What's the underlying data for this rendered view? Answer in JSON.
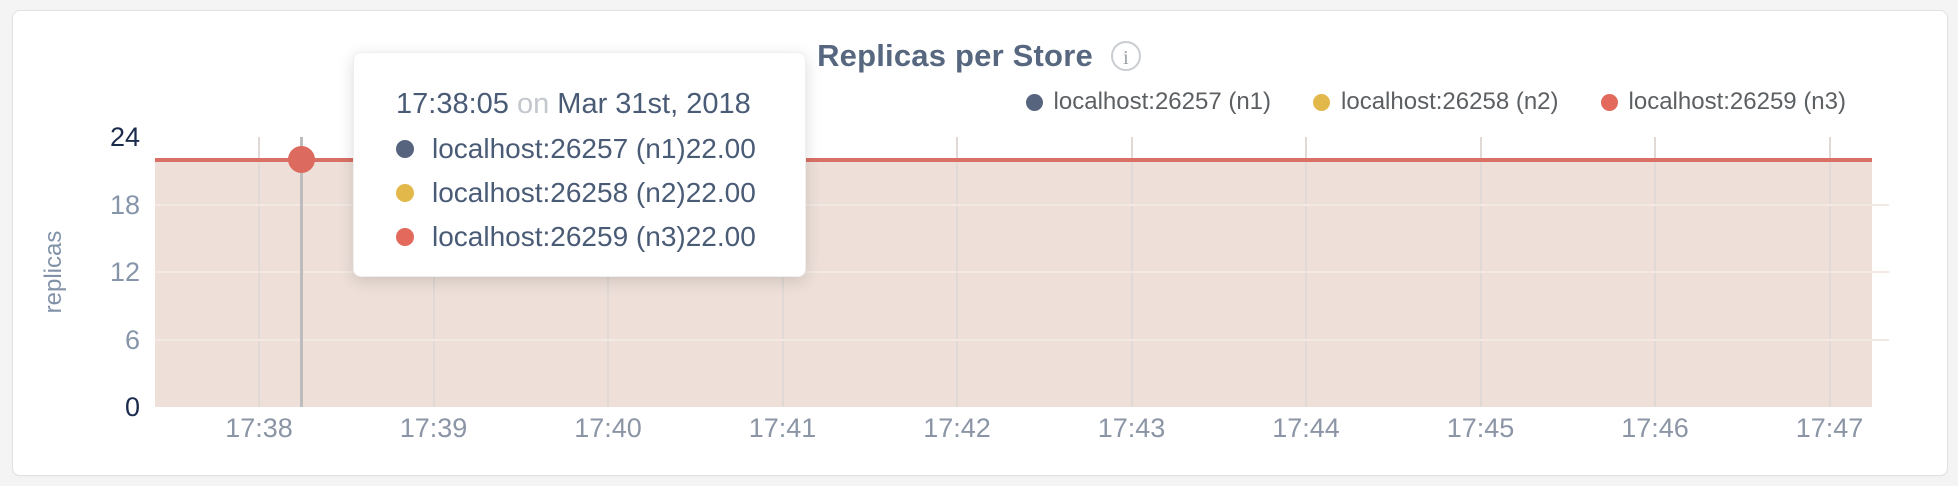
{
  "card": {
    "title": "Replicas per Store",
    "info_icon": "i"
  },
  "legend": {
    "items": [
      {
        "label": "localhost:26257 (n1)",
        "color": "#57647e"
      },
      {
        "label": "localhost:26258 (n2)",
        "color": "#e3b84a"
      },
      {
        "label": "localhost:26259 (n3)",
        "color": "#e2695c"
      }
    ]
  },
  "axes": {
    "y_label": "replicas",
    "y_ticks": [
      {
        "label": "24",
        "value": 24,
        "strong": true
      },
      {
        "label": "18",
        "value": 18,
        "strong": false
      },
      {
        "label": "12",
        "value": 12,
        "strong": false
      },
      {
        "label": "6",
        "value": 6,
        "strong": false
      },
      {
        "label": "0",
        "value": 0,
        "strong": true
      }
    ],
    "x_ticks": [
      "17:38",
      "17:39",
      "17:40",
      "17:41",
      "17:42",
      "17:43",
      "17:44",
      "17:45",
      "17:46",
      "17:47"
    ]
  },
  "tooltip": {
    "time": "17:38:05",
    "conjunction": "on",
    "date": "Mar 31st, 2018",
    "rows": [
      {
        "label": "localhost:26257 (n1)",
        "value": "22.00",
        "color": "#57647e"
      },
      {
        "label": "localhost:26258 (n2)",
        "value": "22.00",
        "color": "#e3b84a"
      },
      {
        "label": "localhost:26259 (n3)",
        "value": "22.00",
        "color": "#e2695c"
      }
    ]
  },
  "colors": {
    "page_bg": "#f4f4f5",
    "line": "#d97066",
    "fill": "#eee0d9",
    "hover_line": "#bcbcbc",
    "hover_dot": "#dd6a5e"
  },
  "chart_data": {
    "type": "line",
    "title": "Replicas per Store",
    "ylabel": "replicas",
    "xlabel": "",
    "x": [
      "17:38",
      "17:39",
      "17:40",
      "17:41",
      "17:42",
      "17:43",
      "17:44",
      "17:45",
      "17:46",
      "17:47"
    ],
    "ylim": [
      0,
      24
    ],
    "y_ticks": [
      0,
      6,
      12,
      18,
      24
    ],
    "grid": true,
    "area_fill": true,
    "legend_position": "top-right",
    "series": [
      {
        "name": "localhost:26257 (n1)",
        "color": "#57647e",
        "values": [
          22,
          22,
          22,
          22,
          22,
          22,
          22,
          22,
          22,
          22
        ]
      },
      {
        "name": "localhost:26258 (n2)",
        "color": "#e3b84a",
        "values": [
          22,
          22,
          22,
          22,
          22,
          22,
          22,
          22,
          22,
          22
        ]
      },
      {
        "name": "localhost:26259 (n3)",
        "color": "#e2695c",
        "values": [
          22,
          22,
          22,
          22,
          22,
          22,
          22,
          22,
          22,
          22
        ]
      }
    ],
    "hovered_point": {
      "time": "17:38:05",
      "date": "Mar 31st, 2018",
      "values": [
        {
          "name": "localhost:26257 (n1)",
          "value": 22.0
        },
        {
          "name": "localhost:26258 (n2)",
          "value": 22.0
        },
        {
          "name": "localhost:26259 (n3)",
          "value": 22.0
        }
      ]
    }
  }
}
